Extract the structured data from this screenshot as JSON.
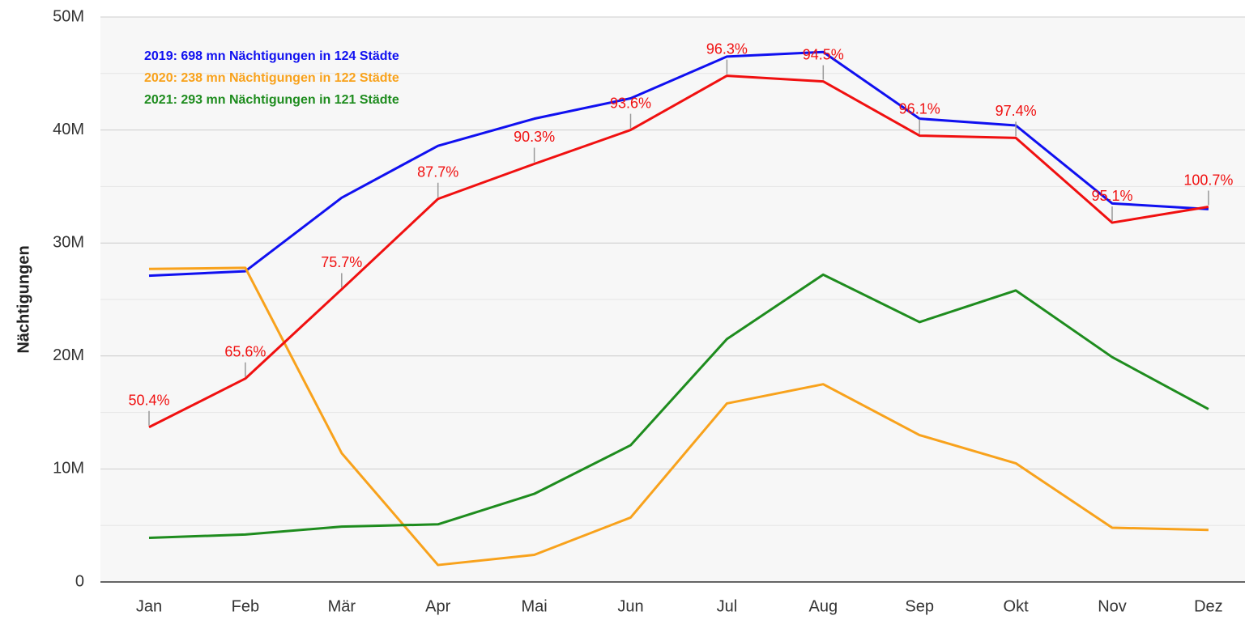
{
  "chart_data": {
    "type": "line",
    "y_label": "Nächtigungen",
    "categories": [
      "Jan",
      "Feb",
      "Mär",
      "Apr",
      "Mai",
      "Jun",
      "Jul",
      "Aug",
      "Sep",
      "Okt",
      "Nov",
      "Dez"
    ],
    "ylim": [
      0,
      50
    ],
    "yticks": [
      0,
      {
        "value": 10,
        "label": "10M"
      },
      {
        "value": 20,
        "label": "20M"
      },
      {
        "value": 30,
        "label": "30M"
      },
      {
        "value": 40,
        "label": "40M"
      },
      {
        "value": 50,
        "label": "50M"
      }
    ],
    "minor_yticks": [
      5,
      15,
      25,
      35,
      45
    ],
    "grid": true,
    "series": [
      {
        "name": "2019: 698 mn Nächtigungen in 124 Städte",
        "color": "#1010f0",
        "values": [
          27.1,
          27.5,
          34.0,
          38.6,
          41.0,
          42.8,
          46.5,
          46.9,
          41.0,
          40.4,
          33.5,
          33.0
        ]
      },
      {
        "name": "2020: 238 mn Nächtigungen in 122 Städte",
        "color": "#f8a21c",
        "values": [
          27.7,
          27.8,
          11.4,
          1.5,
          2.4,
          5.7,
          15.8,
          17.5,
          13.0,
          10.5,
          4.8,
          4.6
        ]
      },
      {
        "name": "2021: 293 mn Nächtigungen in 121 Städte",
        "color": "#1e8c1e",
        "values": [
          3.9,
          4.2,
          4.9,
          5.1,
          7.8,
          12.1,
          21.5,
          27.2,
          23.0,
          25.8,
          19.9,
          15.3
        ]
      },
      {
        "color": "#f01010",
        "values": [
          13.7,
          18.0,
          25.9,
          33.9,
          37.0,
          40.0,
          44.8,
          44.3,
          39.5,
          39.3,
          31.8,
          33.2
        ],
        "labels": [
          "50.4%",
          "65.6%",
          "75.7%",
          "87.7%",
          "90.3%",
          "93.6%",
          "96.3%",
          "94.5%",
          "96.1%",
          "97.4%",
          "95.1%",
          "100.7%"
        ]
      }
    ]
  }
}
